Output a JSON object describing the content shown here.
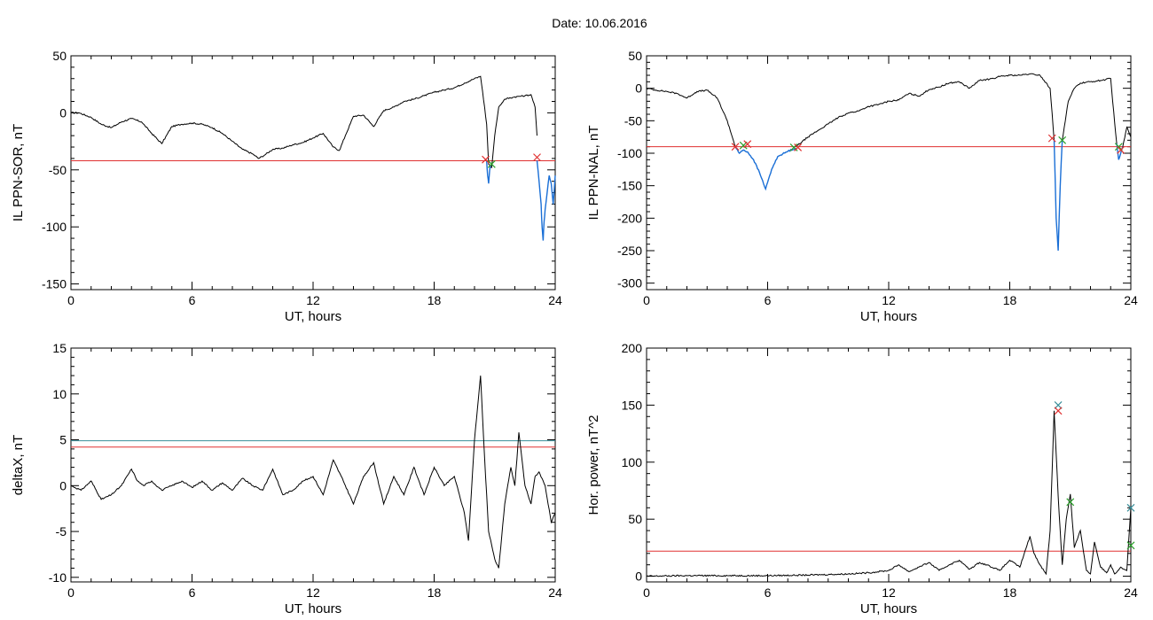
{
  "page": {
    "title": "Date:  10.06.2016"
  },
  "colors": {
    "trace": "#000000",
    "red": "#e03030",
    "blue": "#1a6fd6",
    "teal": "#3a8f9a",
    "green": "#2aa02a"
  },
  "chart_data": [
    {
      "id": "sor",
      "type": "line",
      "xlabel": "UT, hours",
      "ylabel": "IL PPN-SOR, nT",
      "xlim": [
        0,
        24
      ],
      "ylim": [
        -155,
        50
      ],
      "xticks": [
        0,
        6,
        12,
        18,
        24
      ],
      "xtick_labels": [
        "0",
        "6",
        "12",
        "18",
        "24"
      ],
      "yticks": [
        50,
        0,
        -50,
        -100,
        -150
      ],
      "ytick_labels": [
        "50",
        "0",
        "-50",
        "-100",
        "-150"
      ],
      "thresholds": [
        {
          "value": -42,
          "color": "red"
        }
      ],
      "series": [
        {
          "color": "trace",
          "x": [
            0,
            0.4,
            1,
            1.5,
            2,
            2.5,
            3,
            3.5,
            4,
            4.5,
            5,
            5.5,
            6,
            6.5,
            7,
            7.5,
            8,
            8.5,
            9,
            9.3,
            9.6,
            10,
            10.5,
            11,
            11.5,
            12,
            12.5,
            13,
            13.3,
            13.6,
            14,
            14.5,
            15,
            15.5,
            16,
            16.5,
            17,
            17.5,
            18,
            18.5,
            19,
            19.5,
            20,
            20.3,
            20.5
          ],
          "y": [
            0,
            0,
            -4,
            -10,
            -13,
            -8,
            -5,
            -8,
            -18,
            -27,
            -12,
            -10,
            -9,
            -10,
            -13,
            -18,
            -25,
            -32,
            -36,
            -40,
            -37,
            -32,
            -31,
            -28,
            -26,
            -22,
            -18,
            -30,
            -33,
            -20,
            -3,
            -2,
            -12,
            2,
            5,
            10,
            12,
            15,
            18,
            20,
            22,
            26,
            30,
            32,
            5
          ]
        },
        {
          "color": "trace",
          "x": [
            20.5,
            20.6,
            20.7,
            20.85,
            21,
            21.2,
            21.5,
            22,
            22.5,
            22.8,
            23,
            23.1
          ],
          "y": [
            5,
            -10,
            -45,
            -48,
            -20,
            5,
            12,
            14,
            15,
            16,
            5,
            -20
          ]
        },
        {
          "color": "blue",
          "x": [
            20.6,
            20.65,
            20.7,
            20.75,
            20.8
          ],
          "y": [
            -42,
            -55,
            -62,
            -50,
            -46
          ]
        },
        {
          "color": "blue",
          "x": [
            23.1,
            23.2,
            23.3,
            23.35,
            23.4,
            23.45,
            23.5,
            23.6,
            23.7,
            23.8,
            23.9,
            24
          ],
          "y": [
            -42,
            -60,
            -80,
            -100,
            -112,
            -95,
            -85,
            -70,
            -55,
            -62,
            -80,
            -55
          ]
        }
      ],
      "markers": [
        {
          "x": 20.55,
          "y": -41,
          "color": "red"
        },
        {
          "x": 20.85,
          "y": -45,
          "color": "green"
        },
        {
          "x": 23.1,
          "y": -39,
          "color": "red"
        }
      ]
    },
    {
      "id": "nal",
      "type": "line",
      "xlabel": "UT, hours",
      "ylabel": "IL PPN-NAL, nT",
      "xlim": [
        0,
        24
      ],
      "ylim": [
        -310,
        50
      ],
      "xticks": [
        0,
        6,
        12,
        18,
        24
      ],
      "xtick_labels": [
        "0",
        "6",
        "12",
        "18",
        "24"
      ],
      "yticks": [
        50,
        0,
        -50,
        -100,
        -150,
        -200,
        -250,
        -300
      ],
      "ytick_labels": [
        "50",
        "0",
        "-50",
        "-100",
        "-150",
        "-200",
        "-250",
        "-300"
      ],
      "thresholds": [
        {
          "value": -90,
          "color": "red"
        }
      ],
      "series": [
        {
          "color": "trace",
          "x": [
            0,
            0.5,
            1,
            1.5,
            2,
            2.5,
            3,
            3.5,
            4,
            4.4
          ],
          "y": [
            0,
            -3,
            -5,
            -8,
            -15,
            -5,
            -3,
            -15,
            -50,
            -90
          ]
        },
        {
          "color": "blue",
          "x": [
            4.4,
            4.6,
            4.8,
            5,
            5.3,
            5.6,
            5.9,
            6.2,
            6.5,
            7,
            7.4
          ],
          "y": [
            -90,
            -100,
            -95,
            -98,
            -110,
            -130,
            -155,
            -125,
            -105,
            -97,
            -92
          ]
        },
        {
          "color": "trace",
          "x": [
            7.4,
            8,
            8.5,
            9,
            9.5,
            10,
            10.5,
            11,
            11.5,
            12,
            12.5,
            13,
            13.5,
            14,
            14.5,
            15,
            15.5,
            16,
            16.5,
            17,
            17.5,
            18,
            18.5,
            19,
            19.5,
            20,
            20.2
          ],
          "y": [
            -90,
            -75,
            -65,
            -55,
            -45,
            -38,
            -35,
            -28,
            -25,
            -20,
            -18,
            -8,
            -12,
            -2,
            2,
            8,
            10,
            0,
            12,
            14,
            18,
            20,
            20,
            22,
            20,
            0,
            -80
          ]
        },
        {
          "color": "blue",
          "x": [
            20.2,
            20.3,
            20.4,
            20.5,
            20.6
          ],
          "y": [
            -80,
            -200,
            -250,
            -150,
            -80
          ]
        },
        {
          "color": "trace",
          "x": [
            20.6,
            20.9,
            21.2,
            21.5,
            22,
            22.5,
            23,
            23.1,
            23.3
          ],
          "y": [
            -80,
            -20,
            0,
            8,
            10,
            12,
            15,
            -20,
            -85
          ]
        },
        {
          "color": "blue",
          "x": [
            23.3,
            23.4,
            23.5,
            23.6
          ],
          "y": [
            -85,
            -110,
            -100,
            -90
          ]
        },
        {
          "color": "trace",
          "x": [
            23.6,
            23.8,
            24
          ],
          "y": [
            -90,
            -60,
            -75
          ]
        }
      ],
      "markers": [
        {
          "x": 4.4,
          "y": -90,
          "color": "red"
        },
        {
          "x": 4.8,
          "y": -88,
          "color": "green"
        },
        {
          "x": 5.0,
          "y": -86,
          "color": "red"
        },
        {
          "x": 7.3,
          "y": -91,
          "color": "green"
        },
        {
          "x": 7.5,
          "y": -91,
          "color": "red"
        },
        {
          "x": 20.1,
          "y": -77,
          "color": "red"
        },
        {
          "x": 20.6,
          "y": -80,
          "color": "green"
        },
        {
          "x": 23.4,
          "y": -90,
          "color": "green"
        },
        {
          "x": 23.5,
          "y": -95,
          "color": "red"
        }
      ]
    },
    {
      "id": "deltax",
      "type": "line",
      "xlabel": "UT, hours",
      "ylabel": "deltaX, nT",
      "xlim": [
        0,
        24
      ],
      "ylim": [
        -10.5,
        15
      ],
      "xticks": [
        0,
        6,
        12,
        18,
        24
      ],
      "xtick_labels": [
        "0",
        "6",
        "12",
        "18",
        "24"
      ],
      "yticks": [
        15,
        10,
        5,
        0,
        -5,
        -10
      ],
      "ytick_labels": [
        "15",
        "10",
        "5",
        "0",
        "-5",
        "-10"
      ],
      "thresholds": [
        {
          "value": 4.9,
          "color": "teal"
        },
        {
          "value": 4.2,
          "color": "red"
        }
      ],
      "series": [
        {
          "color": "trace",
          "x": [
            0,
            0.5,
            1,
            1.5,
            2,
            2.5,
            3,
            3.3,
            3.6,
            4,
            4.5,
            5,
            5.5,
            6,
            6.5,
            7,
            7.5,
            8,
            8.5,
            9,
            9.5,
            10,
            10.5,
            11,
            11.5,
            12,
            12.5,
            13,
            13.5,
            14,
            14.5,
            15,
            15.5,
            16,
            16.5,
            17,
            17.5,
            18,
            18.5,
            19,
            19.5,
            19.7,
            20,
            20.3,
            20.5,
            20.7,
            21,
            21.2,
            21.5,
            21.8,
            22,
            22.2,
            22.5,
            22.8,
            23,
            23.2,
            23.5,
            23.8,
            24
          ],
          "y": [
            0,
            -0.5,
            0.5,
            -1.5,
            -1,
            0,
            1.8,
            0.5,
            0,
            0.5,
            -0.5,
            0,
            0.5,
            -0.2,
            0.5,
            -0.5,
            0.3,
            -0.5,
            0.8,
            0,
            -0.5,
            1.8,
            -1,
            -0.5,
            0.5,
            1,
            -1,
            2.8,
            0.5,
            -2,
            1,
            2.5,
            -2,
            1,
            -1,
            2,
            -1,
            2,
            0,
            1,
            -3,
            -6,
            5,
            12,
            3,
            -5,
            -8,
            -9,
            -2,
            2,
            0,
            5.8,
            0,
            -2,
            1,
            1.5,
            0,
            -4,
            -3
          ]
        }
      ],
      "markers": []
    },
    {
      "id": "power",
      "type": "line",
      "xlabel": "UT, hours",
      "ylabel": "Hor. power, nT^2",
      "xlim": [
        0,
        24
      ],
      "ylim": [
        -5,
        200
      ],
      "xticks": [
        0,
        6,
        12,
        18,
        24
      ],
      "xtick_labels": [
        "0",
        "6",
        "12",
        "18",
        "24"
      ],
      "yticks": [
        200,
        150,
        100,
        50,
        0
      ],
      "ytick_labels": [
        "200",
        "150",
        "100",
        "50",
        "0"
      ],
      "thresholds": [
        {
          "value": 22,
          "color": "red"
        }
      ],
      "series": [
        {
          "color": "trace",
          "x": [
            0,
            2,
            4,
            6,
            8,
            10,
            11,
            12,
            12.5,
            13,
            13.5,
            14,
            14.5,
            15,
            15.5,
            16,
            16.5,
            17,
            17.5,
            18,
            18.5,
            19,
            19.2,
            19.5,
            19.8,
            20,
            20.2,
            20.4,
            20.6,
            20.8,
            21,
            21.2,
            21.5,
            21.8,
            22,
            22.2,
            22.5,
            22.8,
            23,
            23.2,
            23.5,
            23.8,
            24
          ],
          "y": [
            0,
            0.5,
            0.5,
            0.5,
            1,
            2,
            3,
            5,
            10,
            4,
            8,
            12,
            5,
            10,
            14,
            6,
            12,
            9,
            5,
            14,
            8,
            35,
            20,
            10,
            2,
            40,
            145,
            70,
            10,
            50,
            72,
            25,
            40,
            5,
            2,
            30,
            8,
            3,
            10,
            2,
            8,
            5,
            60
          ]
        }
      ],
      "markers": [
        {
          "x": 20.4,
          "y": 150,
          "color": "teal"
        },
        {
          "x": 20.4,
          "y": 145,
          "color": "red"
        },
        {
          "x": 21.0,
          "y": 65,
          "color": "green"
        },
        {
          "x": 24,
          "y": 60,
          "color": "teal"
        },
        {
          "x": 24,
          "y": 27,
          "color": "green"
        }
      ]
    }
  ]
}
